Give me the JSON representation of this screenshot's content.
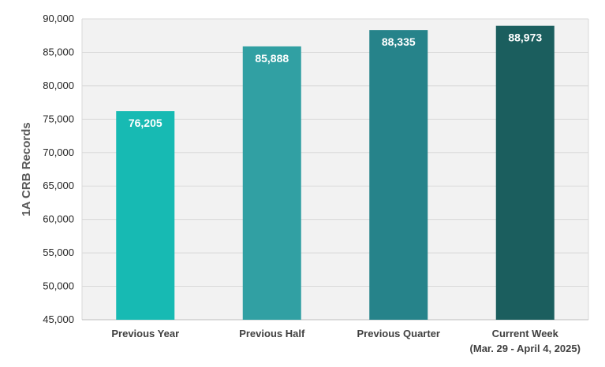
{
  "chart_data": {
    "type": "bar",
    "title": "",
    "xlabel": "",
    "ylabel": "1A CRB Records",
    "ylim": [
      45000,
      90000
    ],
    "y_ticks": [
      45000,
      50000,
      55000,
      60000,
      65000,
      70000,
      75000,
      80000,
      85000,
      90000
    ],
    "y_tick_labels": [
      "45,000",
      "50,000",
      "55,000",
      "60,000",
      "65,000",
      "70,000",
      "75,000",
      "80,000",
      "85,000",
      "90,000"
    ],
    "categories": [
      [
        "Previous Year"
      ],
      [
        "Previous Half"
      ],
      [
        "Previous Quarter"
      ],
      [
        "Current Week",
        "(Mar. 29 - April 4, 2025)"
      ]
    ],
    "values": [
      76205,
      85888,
      88335,
      88973
    ],
    "value_labels": [
      "76,205",
      "85,888",
      "88,335",
      "88,973"
    ],
    "bar_colors": [
      "#17bab3",
      "#31a0a3",
      "#26838a",
      "#1b5e5e"
    ],
    "grid": true,
    "grid_color": "#d9d9d9",
    "plot_background": "#f2f2f2",
    "legend": "none"
  }
}
